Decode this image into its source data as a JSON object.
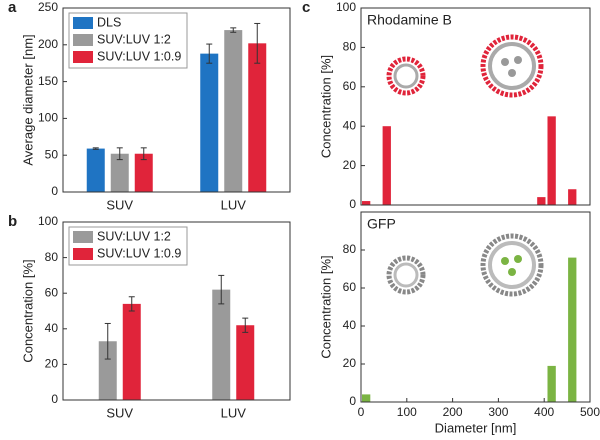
{
  "chart_data": [
    {
      "type": "bar",
      "label": "a",
      "ylabel": "Average diameter [nm]",
      "categories": [
        "SUV",
        "LUV"
      ],
      "series": [
        {
          "name": "DLS",
          "color": "#1f74c3",
          "values": [
            59,
            188
          ],
          "errors": [
            1,
            13
          ]
        },
        {
          "name": "SUV:LUV 1:2",
          "color": "#9a9a9a",
          "values": [
            52,
            220
          ],
          "errors": [
            8,
            3
          ]
        },
        {
          "name": "SUV:LUV 1:0.9",
          "color": "#e0243a",
          "values": [
            52,
            202
          ],
          "errors": [
            8,
            27
          ]
        }
      ],
      "ylim": [
        0,
        250
      ],
      "yticks": [
        0,
        50,
        100,
        150,
        200,
        250
      ]
    },
    {
      "type": "bar",
      "label": "b",
      "ylabel": "Concentration [%]",
      "categories": [
        "SUV",
        "LUV"
      ],
      "series": [
        {
          "name": "SUV:LUV 1:2",
          "color": "#9a9a9a",
          "values": [
            33,
            62
          ],
          "errors": [
            10,
            8
          ]
        },
        {
          "name": "SUV:LUV 1:0.9",
          "color": "#e0243a",
          "values": [
            54,
            42
          ],
          "errors": [
            4,
            4
          ]
        }
      ],
      "ylim": [
        0,
        100
      ],
      "yticks": [
        0,
        20,
        40,
        60,
        80,
        100
      ]
    },
    {
      "type": "histogram",
      "label": "c",
      "title": "Rhodamine B",
      "ylabel": "Concentration [%]",
      "color": "#e0243a",
      "bins": [
        0,
        22.5,
        45,
        67.5,
        90,
        112.5,
        135,
        157.5,
        180,
        202.5,
        225,
        247.5,
        270,
        292.5,
        315,
        337.5,
        360,
        382.5,
        405,
        427.5,
        450,
        472.5,
        495
      ],
      "values": [
        2,
        0,
        40,
        0,
        0,
        0,
        0,
        0,
        0,
        0,
        0,
        0,
        0,
        0,
        0,
        0,
        0,
        4,
        45,
        0,
        8,
        0
      ],
      "xlim": [
        0,
        500
      ],
      "ylim": [
        0,
        100
      ],
      "yticks": [
        0,
        20,
        40,
        60,
        80,
        100
      ]
    },
    {
      "type": "histogram",
      "title": "GFP",
      "ylabel": "Concentration [%]",
      "xlabel": "Diameter [nm]",
      "color": "#7bb443",
      "bins": [
        0,
        22.5,
        45,
        67.5,
        90,
        112.5,
        135,
        157.5,
        180,
        202.5,
        225,
        247.5,
        270,
        292.5,
        315,
        337.5,
        360,
        382.5,
        405,
        427.5,
        450,
        472.5,
        495
      ],
      "values": [
        4,
        0,
        0,
        0,
        0,
        0,
        0,
        0,
        0,
        0,
        0,
        0,
        0,
        0,
        0,
        0,
        0,
        0,
        19,
        0,
        76,
        0
      ],
      "xlim": [
        0,
        500
      ],
      "xticks": [
        0,
        100,
        200,
        300,
        400,
        500
      ],
      "ylim": [
        0,
        100
      ],
      "yticks": [
        0,
        20,
        40,
        60,
        80
      ]
    }
  ]
}
